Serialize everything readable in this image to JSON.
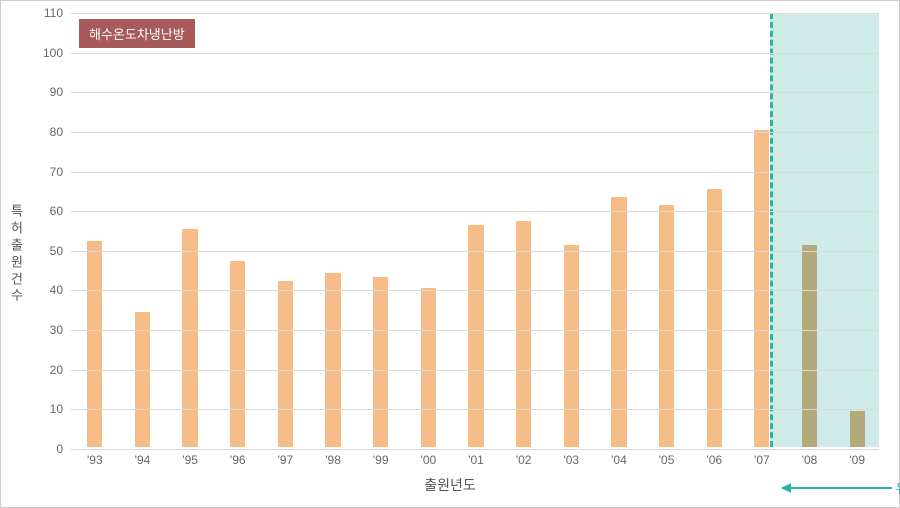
{
  "chart": {
    "type": "bar",
    "legend": {
      "label": "해수온도차냉난방",
      "bg_color": "#a85a5a",
      "text_color": "#ffffff"
    },
    "ylabel": "특허출원건수",
    "xlabel": "출원년도",
    "ylim": [
      0,
      110
    ],
    "ytick_step": 10,
    "grid_color": "#d9d9d9",
    "background_color": "#ffffff",
    "bar_color_main": "#f6bc87",
    "bar_color_shaded": "#b3a97a",
    "bar_width_ratio": 0.32,
    "categories": [
      "'93",
      "'94",
      "'95",
      "'96",
      "'97",
      "'98",
      "'99",
      "'00",
      "'01",
      "'02",
      "'03",
      "'04",
      "'05",
      "'06",
      "'07",
      "'08",
      "'09"
    ],
    "values": [
      52,
      34,
      55,
      47,
      42,
      44,
      43,
      40,
      56,
      57,
      51,
      63,
      61,
      65,
      80,
      51,
      9
    ],
    "highlight": {
      "start_index": 15,
      "color": "#bfe4e0",
      "opacity": 0.75,
      "border_color": "#2bb3a3",
      "annotation_label": "유효분석구간",
      "annotation_color": "#2bb3a3"
    },
    "tick_fontsize": 12,
    "label_fontsize": 13
  }
}
